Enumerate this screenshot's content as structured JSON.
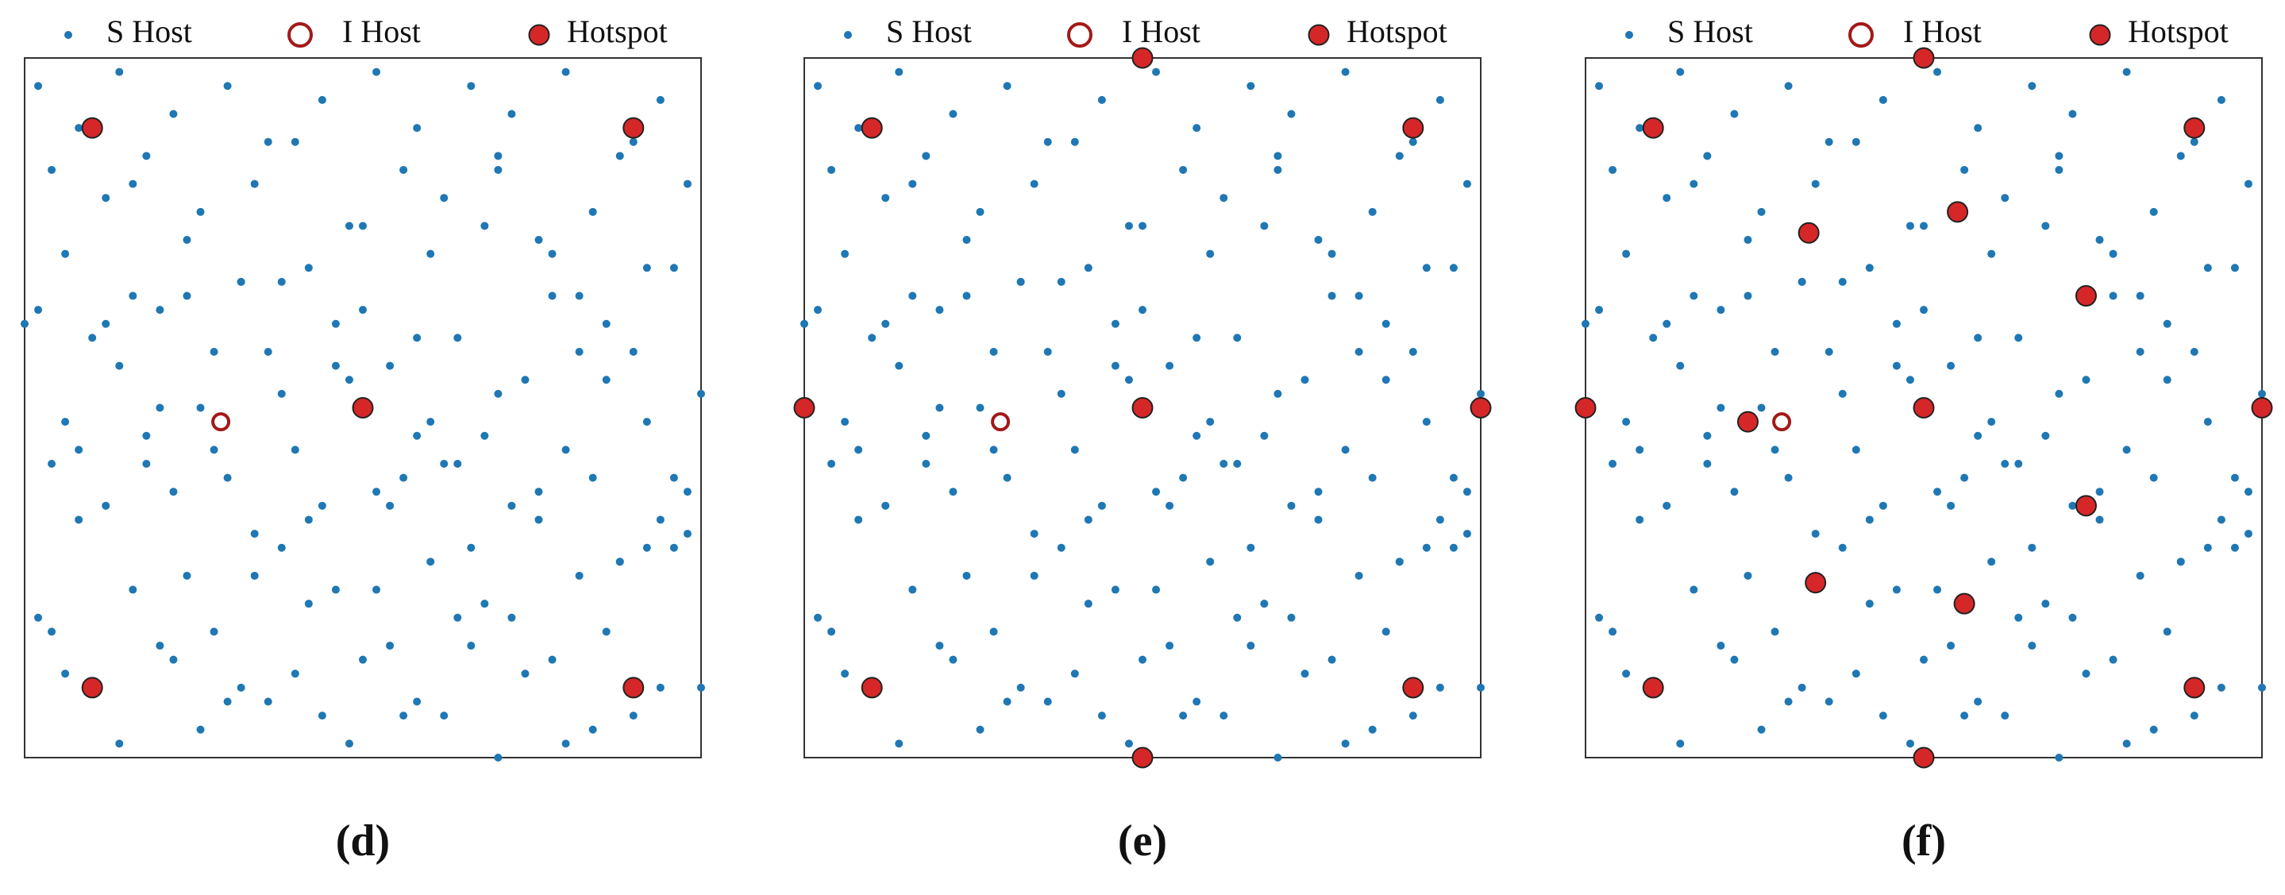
{
  "chart_data": [
    {
      "type": "scatter",
      "caption": "(d)",
      "xlim": [
        0,
        100
      ],
      "ylim": [
        0,
        100
      ],
      "series": [
        {
          "name": "S Host",
          "color": "#1f77b4",
          "marker": "dot",
          "x": [
            2,
            8,
            14,
            22,
            30,
            36,
            44,
            52,
            58,
            66,
            72,
            80,
            88,
            94,
            98,
            4,
            12,
            18,
            26,
            34,
            40,
            48,
            56,
            62,
            70,
            76,
            84,
            92,
            6,
            16,
            24,
            32,
            42,
            50,
            60,
            68,
            78,
            86,
            96,
            10,
            20,
            28,
            38,
            46,
            54,
            64,
            74,
            82,
            90,
            100,
            0,
            14,
            26,
            36,
            48,
            58,
            70,
            80,
            92,
            4,
            18,
            30,
            40,
            52,
            62,
            72,
            84,
            94,
            8,
            22,
            34,
            44,
            56,
            66,
            76,
            88,
            98,
            12,
            24,
            38,
            46,
            60,
            68,
            82,
            96,
            2,
            16,
            28,
            42,
            54,
            64,
            78,
            86,
            6,
            20,
            32,
            50,
            58,
            74,
            90,
            10,
            26,
            36,
            48,
            62,
            70,
            84,
            94,
            14,
            30,
            40,
            56,
            66,
            80,
            100,
            4,
            22,
            44,
            52,
            72,
            88,
            8,
            18,
            34,
            46,
            60,
            76,
            92,
            12,
            28,
            38,
            54,
            68,
            82,
            96,
            2,
            20,
            32,
            42,
            58,
            64,
            78,
            86,
            98,
            6,
            16,
            24,
            50,
            70,
            90
          ],
          "values": [
            96,
            90,
            98,
            92,
            96,
            88,
            94,
            98,
            90,
            96,
            92,
            98,
            86,
            94,
            82,
            84,
            80,
            86,
            78,
            82,
            88,
            76,
            84,
            80,
            86,
            74,
            78,
            70,
            72,
            66,
            74,
            68,
            70,
            64,
            72,
            76,
            66,
            62,
            70,
            60,
            64,
            58,
            68,
            62,
            56,
            60,
            54,
            66,
            58,
            52,
            62,
            56,
            50,
            58,
            54,
            46,
            52,
            44,
            48,
            42,
            46,
            40,
            44,
            38,
            42,
            36,
            40,
            34,
            44,
            38,
            32,
            36,
            40,
            30,
            34,
            28,
            32,
            36,
            26,
            30,
            24,
            28,
            22,
            26,
            30,
            20,
            24,
            18,
            22,
            16,
            20,
            14,
            18,
            12,
            16,
            10,
            14,
            8,
            12,
            6,
            10,
            4,
            8,
            2,
            6,
            0,
            4,
            10,
            2,
            8,
            12,
            6,
            16,
            2,
            10,
            18,
            14,
            6,
            24,
            20,
            28,
            34,
            42,
            26,
            56,
            48,
            38,
            30,
            62,
            44,
            52,
            36,
            46,
            58,
            40,
            64,
            50,
            68,
            34,
            60,
            42,
            72,
            54,
            38,
            48,
            82,
            66,
            76,
            84,
            88
          ]
        },
        {
          "name": "I Host",
          "color": "#a31818",
          "marker": "ring",
          "x": [
            29
          ],
          "values": [
            48
          ]
        },
        {
          "name": "Hotspot",
          "color": "#d62728",
          "marker": "disc",
          "x": [
            10,
            90,
            50,
            10,
            90
          ],
          "values": [
            90,
            90,
            50,
            10,
            10
          ]
        }
      ]
    },
    {
      "type": "scatter",
      "caption": "(e)",
      "xlim": [
        0,
        100
      ],
      "ylim": [
        0,
        100
      ],
      "series": [
        {
          "name": "S Host",
          "color": "#1f77b4",
          "marker": "dot",
          "x": [
            2,
            8,
            14,
            22,
            30,
            36,
            44,
            52,
            58,
            66,
            72,
            80,
            88,
            94,
            98,
            4,
            12,
            18,
            26,
            34,
            40,
            48,
            56,
            62,
            70,
            76,
            84,
            92,
            6,
            16,
            24,
            32,
            42,
            50,
            60,
            68,
            78,
            86,
            96,
            10,
            20,
            28,
            38,
            46,
            54,
            64,
            74,
            82,
            90,
            100,
            0,
            14,
            26,
            36,
            48,
            58,
            70,
            80,
            92,
            4,
            18,
            30,
            40,
            52,
            62,
            72,
            84,
            94,
            8,
            22,
            34,
            44,
            56,
            66,
            76,
            88,
            98,
            12,
            24,
            38,
            46,
            60,
            68,
            82,
            96,
            2,
            16,
            28,
            42,
            54,
            64,
            78,
            86,
            6,
            20,
            32,
            50,
            58,
            74,
            90,
            10,
            26,
            36,
            48,
            62,
            70,
            84,
            94,
            14,
            30,
            40,
            56,
            66,
            80,
            100,
            4,
            22,
            44,
            52,
            72,
            88,
            8,
            18,
            34,
            46,
            60,
            76,
            92,
            12,
            28,
            38,
            54,
            68,
            82,
            96,
            2,
            20,
            32,
            42,
            58,
            64,
            78,
            86,
            98,
            6,
            16,
            24,
            50,
            70,
            90
          ],
          "values": [
            96,
            90,
            98,
            92,
            96,
            88,
            94,
            98,
            90,
            96,
            92,
            98,
            86,
            94,
            82,
            84,
            80,
            86,
            78,
            82,
            88,
            76,
            84,
            80,
            86,
            74,
            78,
            70,
            72,
            66,
            74,
            68,
            70,
            64,
            72,
            76,
            66,
            62,
            70,
            60,
            64,
            58,
            68,
            62,
            56,
            60,
            54,
            66,
            58,
            52,
            62,
            56,
            50,
            58,
            54,
            46,
            52,
            44,
            48,
            42,
            46,
            40,
            44,
            38,
            42,
            36,
            40,
            34,
            44,
            38,
            32,
            36,
            40,
            30,
            34,
            28,
            32,
            36,
            26,
            30,
            24,
            28,
            22,
            26,
            30,
            20,
            24,
            18,
            22,
            16,
            20,
            14,
            18,
            12,
            16,
            10,
            14,
            8,
            12,
            6,
            10,
            4,
            8,
            2,
            6,
            0,
            4,
            10,
            2,
            8,
            12,
            6,
            16,
            2,
            10,
            18,
            14,
            6,
            24,
            20,
            28,
            34,
            42,
            26,
            56,
            48,
            38,
            30,
            62,
            44,
            52,
            36,
            46,
            58,
            40,
            64,
            50,
            68,
            34,
            60,
            42,
            72,
            54,
            38,
            48,
            82,
            66,
            76,
            84,
            88
          ]
        },
        {
          "name": "I Host",
          "color": "#a31818",
          "marker": "ring",
          "x": [
            29
          ],
          "values": [
            48
          ]
        },
        {
          "name": "Hotspot",
          "color": "#d62728",
          "marker": "disc",
          "x": [
            10,
            90,
            50,
            10,
            90,
            50,
            0,
            100,
            50
          ],
          "values": [
            90,
            90,
            50,
            10,
            10,
            100,
            50,
            50,
            0
          ]
        }
      ]
    },
    {
      "type": "scatter",
      "caption": "(f)",
      "xlim": [
        0,
        100
      ],
      "ylim": [
        0,
        100
      ],
      "series": [
        {
          "name": "S Host",
          "color": "#1f77b4",
          "marker": "dot",
          "x": [
            2,
            8,
            14,
            22,
            30,
            36,
            44,
            52,
            58,
            66,
            72,
            80,
            88,
            94,
            98,
            4,
            12,
            18,
            26,
            34,
            40,
            48,
            56,
            62,
            70,
            76,
            84,
            92,
            6,
            16,
            24,
            32,
            42,
            50,
            60,
            68,
            78,
            86,
            96,
            10,
            20,
            28,
            38,
            46,
            54,
            64,
            74,
            82,
            90,
            100,
            0,
            14,
            26,
            36,
            48,
            58,
            70,
            80,
            92,
            4,
            18,
            30,
            40,
            52,
            62,
            72,
            84,
            94,
            8,
            22,
            34,
            44,
            56,
            66,
            76,
            88,
            98,
            12,
            24,
            38,
            46,
            60,
            68,
            82,
            96,
            2,
            16,
            28,
            42,
            54,
            64,
            78,
            86,
            6,
            20,
            32,
            50,
            58,
            74,
            90,
            10,
            26,
            36,
            48,
            62,
            70,
            84,
            94,
            14,
            30,
            40,
            56,
            66,
            80,
            100,
            4,
            22,
            44,
            52,
            72,
            88,
            8,
            18,
            34,
            46,
            60,
            76,
            92,
            12,
            28,
            38,
            54,
            68,
            82,
            96,
            2,
            20,
            32,
            42,
            58,
            64,
            78,
            86,
            98,
            6,
            16,
            24,
            50,
            70,
            90
          ],
          "values": [
            96,
            90,
            98,
            92,
            96,
            88,
            94,
            98,
            90,
            96,
            92,
            98,
            86,
            94,
            82,
            84,
            80,
            86,
            78,
            82,
            88,
            76,
            84,
            80,
            86,
            74,
            78,
            70,
            72,
            66,
            74,
            68,
            70,
            64,
            72,
            76,
            66,
            62,
            70,
            60,
            64,
            58,
            68,
            62,
            56,
            60,
            54,
            66,
            58,
            52,
            62,
            56,
            50,
            58,
            54,
            46,
            52,
            44,
            48,
            42,
            46,
            40,
            44,
            38,
            42,
            36,
            40,
            34,
            44,
            38,
            32,
            36,
            40,
            30,
            34,
            28,
            32,
            36,
            26,
            30,
            24,
            28,
            22,
            26,
            30,
            20,
            24,
            18,
            22,
            16,
            20,
            14,
            18,
            12,
            16,
            10,
            14,
            8,
            12,
            6,
            10,
            4,
            8,
            2,
            6,
            0,
            4,
            10,
            2,
            8,
            12,
            6,
            16,
            2,
            10,
            18,
            14,
            6,
            24,
            20,
            28,
            34,
            42,
            26,
            56,
            48,
            38,
            30,
            62,
            44,
            52,
            36,
            46,
            58,
            40,
            64,
            50,
            68,
            34,
            60,
            42,
            72,
            54,
            38,
            48,
            82,
            66,
            76,
            84,
            88
          ]
        },
        {
          "name": "I Host",
          "color": "#a31818",
          "marker": "ring",
          "x": [
            29
          ],
          "values": [
            48
          ]
        },
        {
          "name": "Hotspot",
          "color": "#d62728",
          "marker": "disc",
          "x": [
            10,
            90,
            10,
            90,
            50,
            0,
            100,
            50,
            50,
            33,
            55,
            74,
            74,
            56,
            34,
            24
          ],
          "values": [
            90,
            90,
            10,
            10,
            100,
            50,
            50,
            0,
            50,
            75,
            78,
            66,
            36,
            22,
            25,
            48
          ]
        }
      ]
    }
  ]
}
